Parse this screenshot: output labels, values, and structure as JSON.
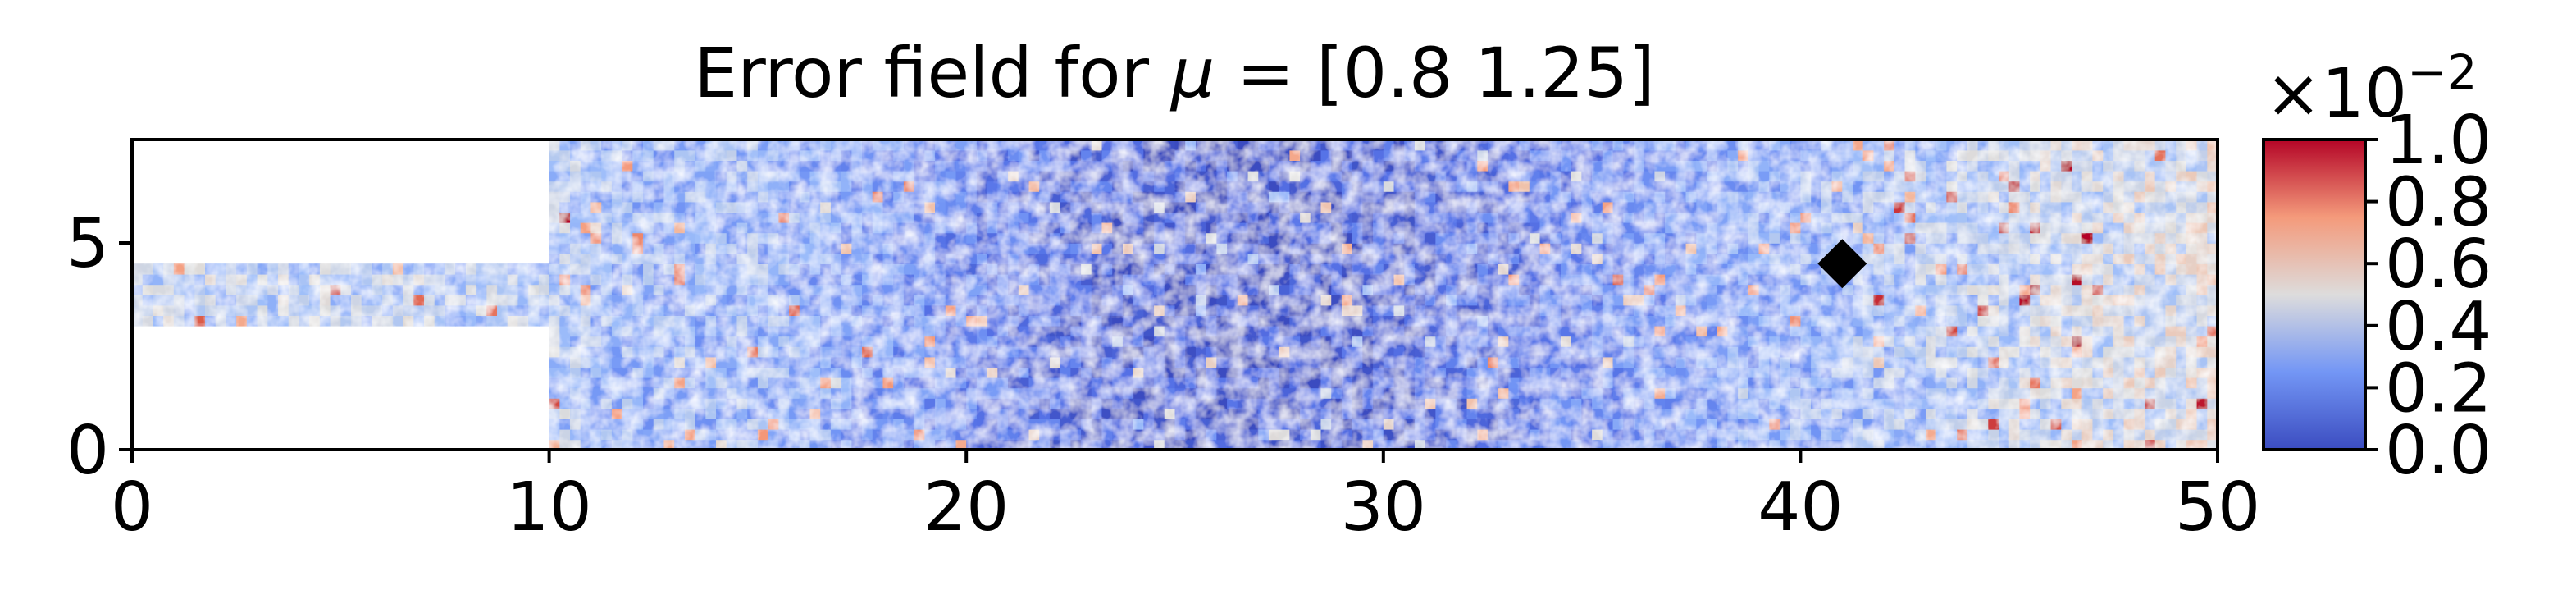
{
  "chart_data": {
    "type": "heatmap",
    "title_prefix": "Error field for ",
    "title_symbol": "μ",
    "title_suffix": " = [0.8  1.25]",
    "xlabel": "",
    "ylabel": "",
    "xlim": [
      0,
      50
    ],
    "ylim": [
      0,
      7.5
    ],
    "x_ticks": [
      0,
      10,
      20,
      30,
      40,
      50
    ],
    "y_ticks": [
      0,
      5
    ],
    "grid": false,
    "domain": {
      "inlet_channel": {
        "x": [
          0,
          10
        ],
        "y": [
          3,
          4.5
        ]
      },
      "main_channel": {
        "x": [
          10,
          50
        ],
        "y": [
          0,
          7.5
        ]
      }
    },
    "colormap": "coolwarm",
    "colorbar": {
      "min": 0.0,
      "max": 1.0,
      "ticks": [
        "0.0",
        "0.2",
        "0.4",
        "0.6",
        "0.8",
        "1.0"
      ],
      "multiplier": "×10",
      "multiplier_exponent": "−2"
    },
    "marker": {
      "shape": "diamond",
      "x": 41,
      "y": 4.5,
      "color": "#000000"
    },
    "error_profile_along_x": {
      "x": [
        0,
        10,
        12,
        15,
        20,
        22.5,
        25,
        27.5,
        30,
        33,
        36,
        40,
        44,
        47,
        50
      ],
      "mean_level": [
        0.42,
        0.4,
        0.32,
        0.34,
        0.2,
        0.12,
        0.07,
        0.06,
        0.1,
        0.16,
        0.24,
        0.32,
        0.4,
        0.46,
        0.5
      ]
    },
    "colors": {
      "low": "#3b4cc0",
      "mid": "#dddcdc",
      "high": "#b40426",
      "axes": "#000000"
    }
  }
}
